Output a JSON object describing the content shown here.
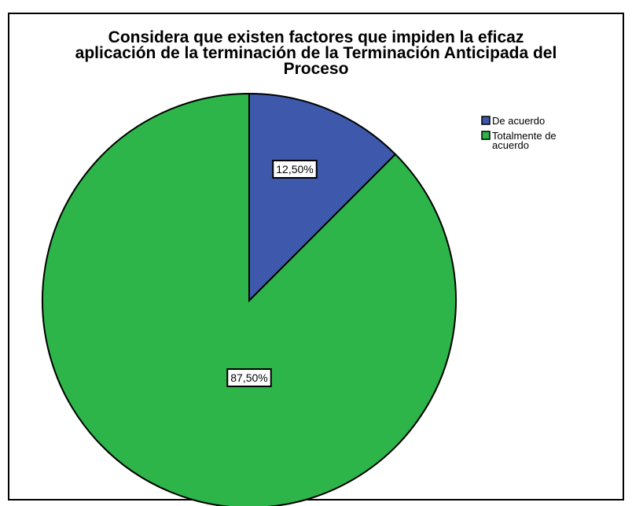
{
  "chart_data": {
    "type": "pie",
    "title_lines": [
      "Considera que existen factores que impiden la eficaz",
      "aplicación de la terminación de la Terminación Anticipada del",
      "Proceso"
    ],
    "categories": [
      "De acuerdo",
      "Totalmente de acuerdo"
    ],
    "legend_lines": [
      [
        "De acuerdo"
      ],
      [
        "Totalmente de",
        "acuerdo"
      ]
    ],
    "values": [
      12.5,
      87.5
    ],
    "labels": [
      "12,50%",
      "87,50%"
    ],
    "colors": [
      "#3e58ac",
      "#2db54a"
    ],
    "legend_position": "top-right"
  }
}
